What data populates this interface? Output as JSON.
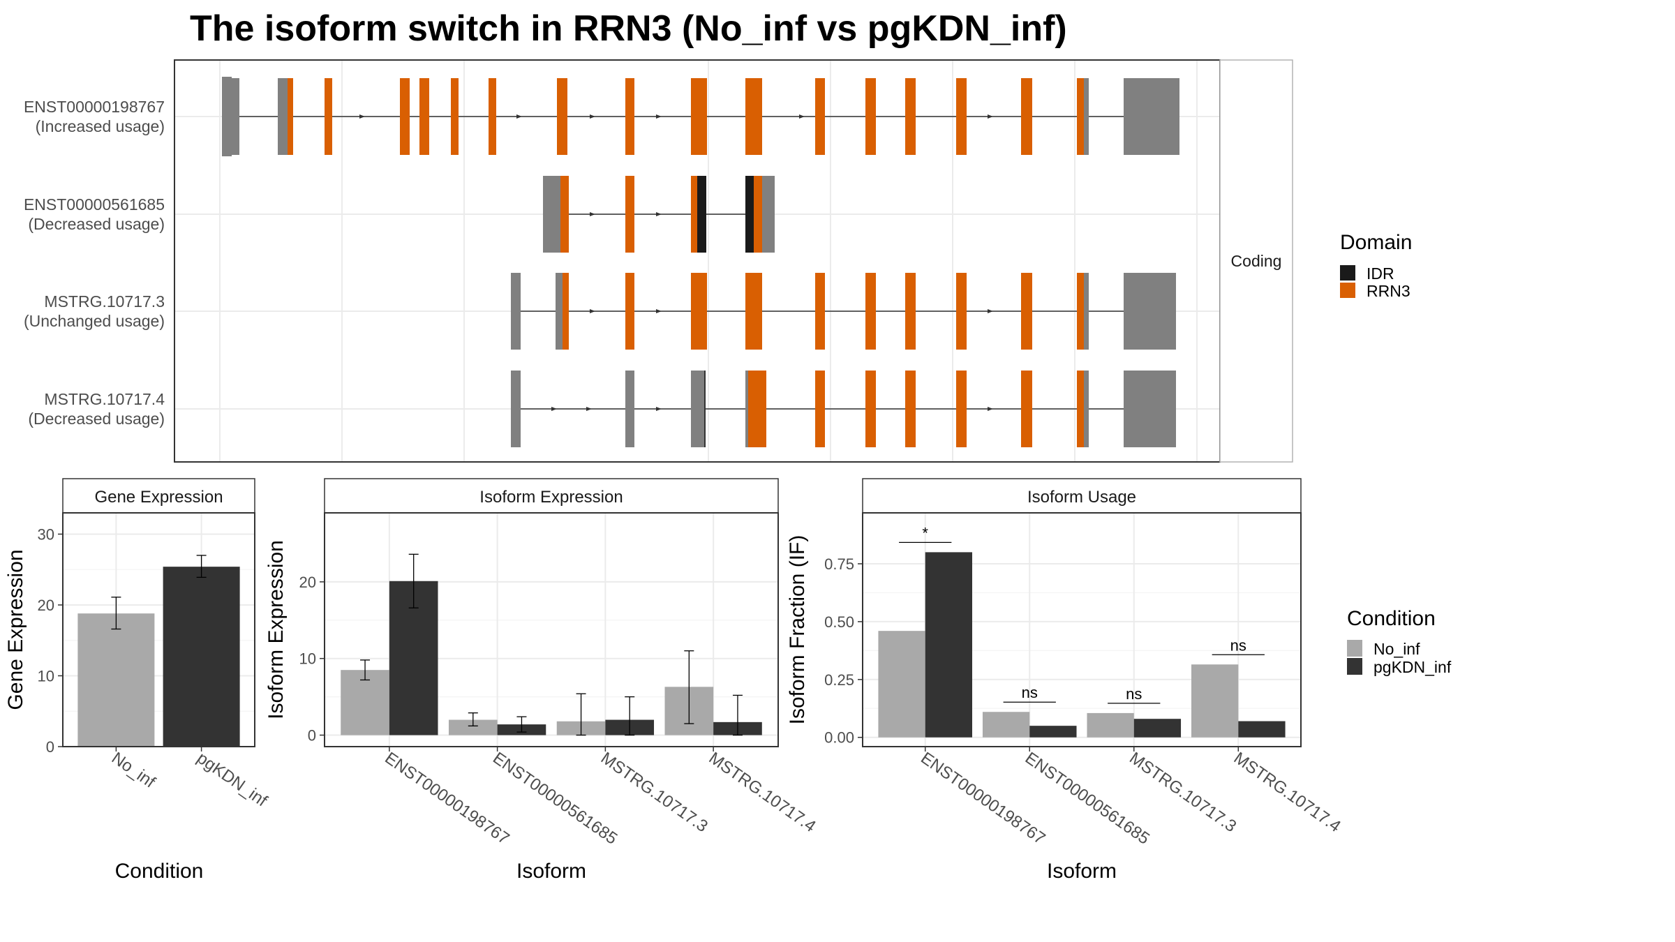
{
  "title": "The isoform switch in RRN3 (No_inf vs pgKDN_inf)",
  "colors": {
    "utr": "#808080",
    "rrn3": "#D95F02",
    "idr": "#1A1A1A",
    "no_inf": "#A9A9A9",
    "pgkdn_inf": "#333333"
  },
  "transcript_panel": {
    "strip_label": "Coding",
    "legend": {
      "title": "Domain",
      "items": [
        {
          "label": "IDR",
          "color": "#1A1A1A"
        },
        {
          "label": "RRN3",
          "color": "#D95F02"
        }
      ]
    },
    "transcripts": [
      {
        "name": "ENST00000198767",
        "usage": "(Increased usage)"
      },
      {
        "name": "ENST00000561685",
        "usage": "(Decreased usage)"
      },
      {
        "name": "MSTRG.10717.3",
        "usage": "(Unchanged usage)"
      },
      {
        "name": "MSTRG.10717.4",
        "usage": "(Decreased usage)"
      }
    ]
  },
  "condition_legend": {
    "title": "Condition",
    "items": [
      {
        "label": "No_inf",
        "color": "#A9A9A9"
      },
      {
        "label": "pgKDN_inf",
        "color": "#333333"
      }
    ]
  },
  "chart_data": [
    {
      "type": "bar",
      "strip_title": "Gene Expression",
      "xlabel": "Condition",
      "ylabel": "Gene Expression",
      "categories": [
        "No_inf",
        "pgKDN_inf"
      ],
      "values": [
        18.8,
        25.4
      ],
      "error": [
        [
          16.6,
          21.1
        ],
        [
          23.9,
          27.0
        ]
      ],
      "ylim": [
        0,
        33
      ],
      "yticks": [
        0,
        10,
        20,
        30
      ]
    },
    {
      "type": "bar",
      "strip_title": "Isoform Expression",
      "xlabel": "Isoform",
      "ylabel": "Isoform Expression",
      "categories": [
        "ENST00000198767",
        "ENST00000561685",
        "MSTRG.10717.3",
        "MSTRG.10717.4"
      ],
      "series": [
        {
          "name": "No_inf",
          "values": [
            8.5,
            2.0,
            1.8,
            6.3
          ],
          "error": [
            [
              7.2,
              9.8
            ],
            [
              1.2,
              2.9
            ],
            [
              0.0,
              5.4
            ],
            [
              1.5,
              11.0
            ]
          ]
        },
        {
          "name": "pgKDN_inf",
          "values": [
            20.1,
            1.4,
            2.0,
            1.7
          ],
          "error": [
            [
              16.6,
              23.6
            ],
            [
              0.4,
              2.4
            ],
            [
              0.0,
              5.0
            ],
            [
              0.0,
              5.2
            ]
          ]
        }
      ],
      "ylim": [
        -1.5,
        29
      ],
      "yticks": [
        0,
        10,
        20
      ]
    },
    {
      "type": "bar",
      "strip_title": "Isoform Usage",
      "xlabel": "Isoform",
      "ylabel": "Isoform Fraction (IF)",
      "categories": [
        "ENST00000198767",
        "ENST00000561685",
        "MSTRG.10717.3",
        "MSTRG.10717.4"
      ],
      "series": [
        {
          "name": "No_inf",
          "values": [
            0.46,
            0.11,
            0.105,
            0.315
          ]
        },
        {
          "name": "pgKDN_inf",
          "values": [
            0.8,
            0.05,
            0.08,
            0.07
          ]
        }
      ],
      "significance": [
        "*",
        "ns",
        "ns",
        "ns"
      ],
      "ylim": [
        -0.04,
        0.97
      ],
      "yticks": [
        "0.00",
        "0.25",
        "0.50",
        "0.75"
      ]
    }
  ]
}
